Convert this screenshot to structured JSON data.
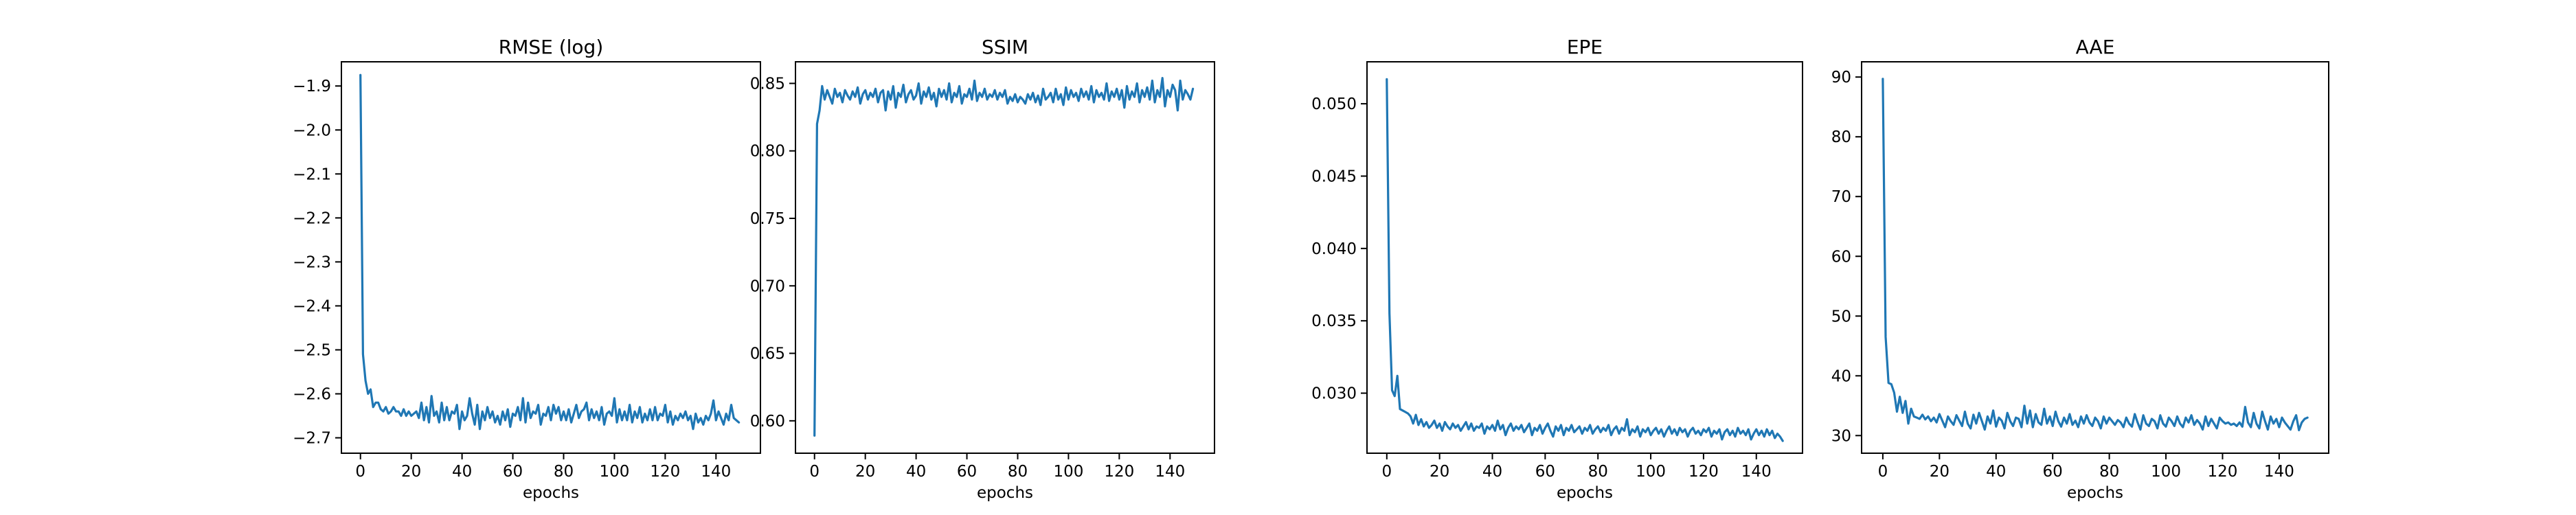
{
  "figure": {
    "background": "#ffffff",
    "line_color": "#1f77b4"
  },
  "chart_data": [
    {
      "type": "line",
      "title": "RMSE (log)",
      "xlabel": "epochs",
      "ylabel": "",
      "xlim": [
        -7.5,
        157.5
      ],
      "ylim": [
        -2.735,
        -1.845
      ],
      "xticks": [
        0,
        20,
        40,
        60,
        80,
        100,
        120,
        140
      ],
      "yticks": [
        -2.7,
        -2.6,
        -2.5,
        -2.4,
        -2.3,
        -2.2,
        -2.1,
        -2.0,
        -1.9
      ],
      "ytick_labels": [
        "−2.7",
        "−2.6",
        "−2.5",
        "−2.4",
        "−2.3",
        "−2.2",
        "−2.1",
        "−2.0",
        "−1.9"
      ],
      "grid": false,
      "series": [
        {
          "values": [
            -1.875,
            -2.51,
            -2.57,
            -2.6,
            -2.59,
            -2.63,
            -2.62,
            -2.62,
            -2.635,
            -2.64,
            -2.63,
            -2.645,
            -2.64,
            -2.63,
            -2.64,
            -2.64,
            -2.65,
            -2.635,
            -2.65,
            -2.64,
            -2.65,
            -2.645,
            -2.64,
            -2.655,
            -2.62,
            -2.66,
            -2.63,
            -2.665,
            -2.605,
            -2.65,
            -2.64,
            -2.665,
            -2.62,
            -2.66,
            -2.63,
            -2.66,
            -2.64,
            -2.645,
            -2.625,
            -2.68,
            -2.64,
            -2.66,
            -2.65,
            -2.61,
            -2.645,
            -2.67,
            -2.625,
            -2.68,
            -2.64,
            -2.66,
            -2.63,
            -2.655,
            -2.64,
            -2.665,
            -2.65,
            -2.67,
            -2.64,
            -2.66,
            -2.635,
            -2.675,
            -2.645,
            -2.65,
            -2.63,
            -2.66,
            -2.61,
            -2.665,
            -2.62,
            -2.655,
            -2.64,
            -2.645,
            -2.625,
            -2.67,
            -2.645,
            -2.65,
            -2.63,
            -2.66,
            -2.625,
            -2.645,
            -2.63,
            -2.66,
            -2.64,
            -2.66,
            -2.635,
            -2.665,
            -2.645,
            -2.625,
            -2.655,
            -2.64,
            -2.635,
            -2.62,
            -2.66,
            -2.635,
            -2.655,
            -2.64,
            -2.66,
            -2.63,
            -2.67,
            -2.645,
            -2.64,
            -2.65,
            -2.61,
            -2.665,
            -2.635,
            -2.66,
            -2.64,
            -2.66,
            -2.625,
            -2.665,
            -2.64,
            -2.655,
            -2.63,
            -2.665,
            -2.645,
            -2.66,
            -2.635,
            -2.66,
            -2.63,
            -2.66,
            -2.645,
            -2.65,
            -2.625,
            -2.665,
            -2.64,
            -2.67,
            -2.65,
            -2.66,
            -2.645,
            -2.655,
            -2.64,
            -2.66,
            -2.65,
            -2.68,
            -2.645,
            -2.665,
            -2.655,
            -2.67,
            -2.65,
            -2.66,
            -2.645,
            -2.615,
            -2.66,
            -2.64,
            -2.655,
            -2.67,
            -2.645,
            -2.66,
            -2.625,
            -2.655,
            -2.66,
            -2.665
          ]
        }
      ]
    },
    {
      "type": "line",
      "title": "SSIM",
      "xlabel": "epochs",
      "ylabel": "",
      "xlim": [
        -7.5,
        157.5
      ],
      "ylim": [
        0.576,
        0.866
      ],
      "xticks": [
        0,
        20,
        40,
        60,
        80,
        100,
        120,
        140
      ],
      "yticks": [
        0.6,
        0.65,
        0.7,
        0.75,
        0.8,
        0.85
      ],
      "ytick_labels": [
        "0.60",
        "0.65",
        "0.70",
        "0.75",
        "0.80",
        "0.85"
      ],
      "grid": false,
      "series": [
        {
          "values": [
            0.589,
            0.82,
            0.83,
            0.848,
            0.838,
            0.845,
            0.84,
            0.835,
            0.846,
            0.84,
            0.843,
            0.836,
            0.845,
            0.841,
            0.838,
            0.844,
            0.84,
            0.847,
            0.835,
            0.842,
            0.845,
            0.838,
            0.843,
            0.84,
            0.846,
            0.836,
            0.843,
            0.845,
            0.83,
            0.844,
            0.838,
            0.848,
            0.832,
            0.843,
            0.84,
            0.849,
            0.836,
            0.842,
            0.845,
            0.838,
            0.841,
            0.85,
            0.835,
            0.844,
            0.84,
            0.847,
            0.838,
            0.843,
            0.833,
            0.846,
            0.84,
            0.845,
            0.838,
            0.85,
            0.836,
            0.843,
            0.84,
            0.848,
            0.835,
            0.842,
            0.84,
            0.846,
            0.838,
            0.852,
            0.837,
            0.843,
            0.84,
            0.846,
            0.838,
            0.842,
            0.84,
            0.845,
            0.838,
            0.843,
            0.84,
            0.845,
            0.835,
            0.84,
            0.837,
            0.842,
            0.836,
            0.84,
            0.838,
            0.835,
            0.842,
            0.838,
            0.843,
            0.836,
            0.841,
            0.834,
            0.846,
            0.838,
            0.84,
            0.843,
            0.836,
            0.846,
            0.838,
            0.842,
            0.834,
            0.847,
            0.838,
            0.845,
            0.84,
            0.843,
            0.837,
            0.846,
            0.84,
            0.844,
            0.838,
            0.848,
            0.836,
            0.845,
            0.84,
            0.843,
            0.838,
            0.85,
            0.837,
            0.844,
            0.84,
            0.846,
            0.838,
            0.845,
            0.832,
            0.848,
            0.838,
            0.844,
            0.84,
            0.85,
            0.836,
            0.845,
            0.84,
            0.847,
            0.838,
            0.852,
            0.836,
            0.845,
            0.84,
            0.854,
            0.833,
            0.845,
            0.84,
            0.849,
            0.845,
            0.83,
            0.852,
            0.838,
            0.845,
            0.842,
            0.838,
            0.846
          ]
        }
      ]
    },
    {
      "type": "line",
      "title": "EPE",
      "xlabel": "epochs",
      "ylabel": "",
      "xlim": [
        -7.5,
        157.5
      ],
      "ylim": [
        0.02585,
        0.0529
      ],
      "xticks": [
        0,
        20,
        40,
        60,
        80,
        100,
        120,
        140
      ],
      "yticks": [
        0.03,
        0.035,
        0.04,
        0.045,
        0.05
      ],
      "ytick_labels": [
        "0.030",
        "0.035",
        "0.040",
        "0.045",
        "0.050"
      ],
      "grid": false,
      "series": [
        {
          "values": [
            0.0517,
            0.0355,
            0.0302,
            0.0298,
            0.0312,
            0.0289,
            0.0288,
            0.0287,
            0.0286,
            0.0284,
            0.0279,
            0.0285,
            0.0278,
            0.0282,
            0.0277,
            0.028,
            0.0276,
            0.0278,
            0.0281,
            0.0276,
            0.0279,
            0.0274,
            0.028,
            0.0277,
            0.0275,
            0.0279,
            0.0276,
            0.0278,
            0.0274,
            0.0277,
            0.028,
            0.0275,
            0.0279,
            0.0274,
            0.0277,
            0.0276,
            0.0279,
            0.0272,
            0.0277,
            0.0275,
            0.0278,
            0.0274,
            0.0281,
            0.0275,
            0.0278,
            0.0271,
            0.0276,
            0.0279,
            0.0274,
            0.0277,
            0.0275,
            0.0278,
            0.0273,
            0.0276,
            0.0279,
            0.0271,
            0.0276,
            0.0274,
            0.0278,
            0.0272,
            0.0276,
            0.0279,
            0.0274,
            0.027,
            0.0277,
            0.0274,
            0.0278,
            0.0271,
            0.0276,
            0.0274,
            0.0278,
            0.0273,
            0.0275,
            0.0277,
            0.0272,
            0.0276,
            0.0274,
            0.0278,
            0.0272,
            0.0275,
            0.0277,
            0.0273,
            0.0276,
            0.0274,
            0.0278,
            0.0271,
            0.0275,
            0.0277,
            0.0272,
            0.0276,
            0.0274,
            0.0282,
            0.0271,
            0.0275,
            0.0273,
            0.0277,
            0.027,
            0.0275,
            0.0273,
            0.0276,
            0.0271,
            0.0274,
            0.0276,
            0.0272,
            0.0275,
            0.027,
            0.0274,
            0.0277,
            0.0272,
            0.0275,
            0.0271,
            0.0276,
            0.0273,
            0.0275,
            0.027,
            0.0274,
            0.0276,
            0.0272,
            0.0274,
            0.0271,
            0.0275,
            0.0273,
            0.0276,
            0.027,
            0.0274,
            0.0272,
            0.0275,
            0.0268,
            0.0273,
            0.0275,
            0.0271,
            0.0274,
            0.027,
            0.0276,
            0.0272,
            0.0274,
            0.0271,
            0.0275,
            0.0268,
            0.0272,
            0.0275,
            0.0271,
            0.0274,
            0.027,
            0.0275,
            0.0271,
            0.0274,
            0.0269,
            0.0272,
            0.027,
            0.0267
          ]
        }
      ]
    },
    {
      "type": "line",
      "title": "AAE",
      "xlabel": "epochs",
      "ylabel": "",
      "xlim": [
        -7.5,
        157.5
      ],
      "ylim": [
        27.05,
        92.55
      ],
      "xticks": [
        0,
        20,
        40,
        60,
        80,
        100,
        120,
        140
      ],
      "yticks": [
        30,
        40,
        50,
        60,
        70,
        80,
        90
      ],
      "ytick_labels": [
        "30",
        "40",
        "50",
        "60",
        "70",
        "80",
        "90"
      ],
      "grid": false,
      "series": [
        {
          "values": [
            89.7,
            46.5,
            38.8,
            38.6,
            37.2,
            34.0,
            36.5,
            33.8,
            35.8,
            32.0,
            34.5,
            33.2,
            33.0,
            32.8,
            33.5,
            32.7,
            33.2,
            32.4,
            33.0,
            32.2,
            33.6,
            32.5,
            31.4,
            33.2,
            32.4,
            31.8,
            33.4,
            32.5,
            31.6,
            34.0,
            32.0,
            31.2,
            33.5,
            32.0,
            33.8,
            32.4,
            31.0,
            33.2,
            32.0,
            34.2,
            31.5,
            33.0,
            32.5,
            31.2,
            33.8,
            32.4,
            31.6,
            33.0,
            32.8,
            31.4,
            35.0,
            32.0,
            34.2,
            31.4,
            33.6,
            32.2,
            31.8,
            34.5,
            32.0,
            33.2,
            31.6,
            34.0,
            32.4,
            31.5,
            33.0,
            32.0,
            33.6,
            31.8,
            32.5,
            31.4,
            33.2,
            32.0,
            33.4,
            32.2,
            31.6,
            33.0,
            32.4,
            31.2,
            33.2,
            32.0,
            33.0,
            32.4,
            31.8,
            32.6,
            32.2,
            31.4,
            33.0,
            32.0,
            31.5,
            33.6,
            32.2,
            31.0,
            33.4,
            32.0,
            31.6,
            32.8,
            32.4,
            31.2,
            33.4,
            32.0,
            31.5,
            33.0,
            32.4,
            31.6,
            33.2,
            32.0,
            31.4,
            33.0,
            32.2,
            33.4,
            31.8,
            32.6,
            32.0,
            31.0,
            33.2,
            31.6,
            32.8,
            32.0,
            31.2,
            33.0,
            32.4,
            32.0,
            32.2,
            31.8,
            32.0,
            31.6,
            32.2,
            31.5,
            34.8,
            32.2,
            31.4,
            33.8,
            32.0,
            31.2,
            34.0,
            32.4,
            31.0,
            33.2,
            32.0,
            32.8,
            31.4,
            33.0,
            32.2,
            31.6,
            31.0,
            32.4,
            33.4,
            30.9,
            32.2,
            32.8,
            33.0
          ]
        }
      ]
    }
  ]
}
